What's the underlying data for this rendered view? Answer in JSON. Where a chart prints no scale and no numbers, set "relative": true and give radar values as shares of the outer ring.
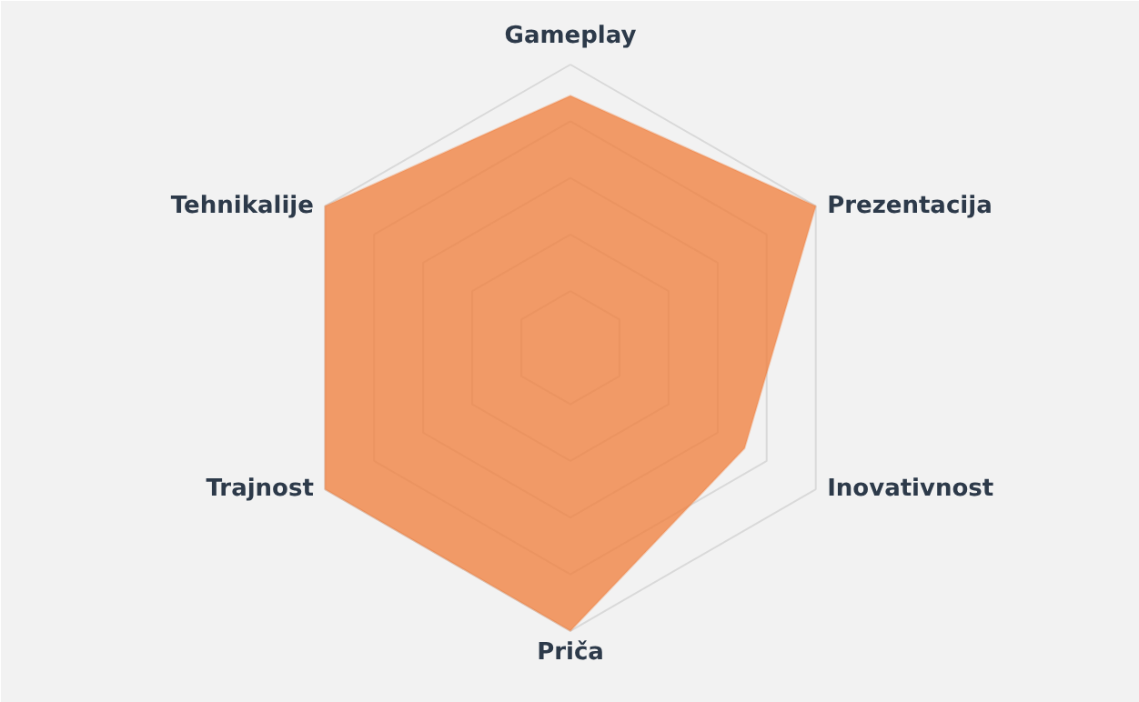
{
  "chart_data": {
    "type": "radar",
    "relative": true,
    "categories": [
      "Gameplay",
      "Prezentacija",
      "Inovativnost",
      "Priča",
      "Trajnost",
      "Tehnikalije"
    ],
    "series": [
      {
        "color": "#f07c38",
        "values": [
          0.89,
          1.0,
          0.71,
          1.0,
          1.0,
          1.0
        ]
      }
    ],
    "grid": true
  }
}
